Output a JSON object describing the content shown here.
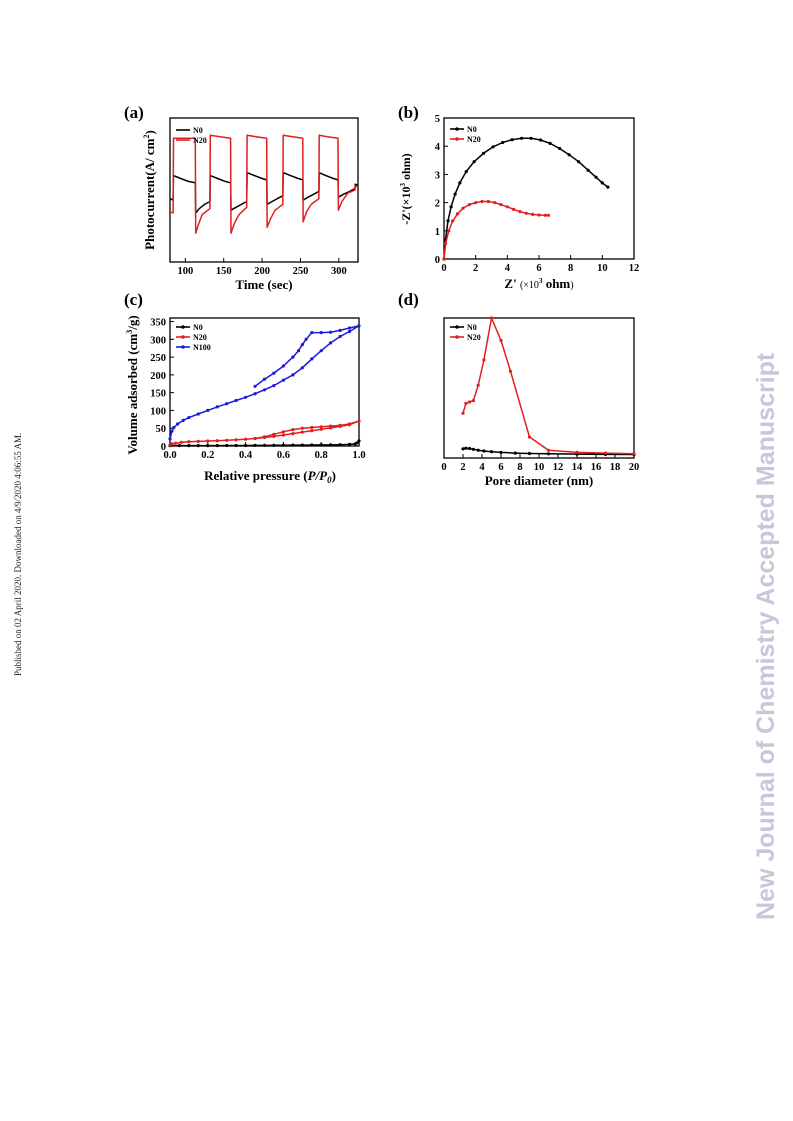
{
  "page": {
    "side_note": "Published on 02 April 2020. Downloaded on 4/9/2020 4:06:55 AM.",
    "watermark": "New Journal of Chemistry Accepted Manuscript"
  },
  "colors": {
    "N0": "#000000",
    "N20": "#e02020",
    "N100": "#1a1adb"
  },
  "chart_data": [
    {
      "panel": "(a)",
      "type": "line",
      "xlabel": "Time (sec)",
      "ylabel": "Photocurrent(A/ cm2)",
      "xlim": [
        80,
        325
      ],
      "ylim": [
        0,
        1
      ],
      "xticks": [
        100,
        150,
        200,
        250,
        300
      ],
      "yticks": [],
      "legend": "top-left",
      "series": [
        {
          "name": "N0",
          "color": "#000000",
          "marker": false,
          "x": [
            80,
            84,
            84.5,
            94,
            104,
            113,
            113.5,
            118,
            125,
            132,
            132.5,
            142,
            152,
            159,
            159.5,
            166,
            173,
            180,
            180.5,
            190,
            200,
            206,
            206.5,
            213,
            220,
            227,
            227.5,
            237,
            247,
            253,
            253.5,
            260,
            267,
            274,
            274.5,
            283,
            293,
            299,
            299.5,
            306,
            314,
            321,
            321.5,
            325
          ],
          "y": [
            0.44,
            0.43,
            0.6,
            0.58,
            0.56,
            0.55,
            0.34,
            0.37,
            0.4,
            0.42,
            0.6,
            0.58,
            0.56,
            0.55,
            0.36,
            0.38,
            0.4,
            0.42,
            0.62,
            0.6,
            0.58,
            0.57,
            0.4,
            0.42,
            0.44,
            0.46,
            0.62,
            0.6,
            0.58,
            0.57,
            0.43,
            0.45,
            0.47,
            0.49,
            0.62,
            0.6,
            0.58,
            0.57,
            0.45,
            0.47,
            0.49,
            0.51,
            0.54,
            0.53
          ]
        },
        {
          "name": "N20",
          "color": "#e02020",
          "marker": false,
          "x": [
            80,
            84,
            84.5,
            96,
            108,
            113,
            113.5,
            117,
            122,
            132,
            132.5,
            145,
            159,
            159.5,
            164,
            170,
            180,
            180.5,
            192,
            206,
            206.5,
            211,
            217,
            227,
            227.5,
            240,
            253,
            253.5,
            258,
            264,
            274,
            274.5,
            285,
            299,
            299.5,
            304,
            312,
            321,
            321.5,
            325
          ],
          "y": [
            0.35,
            0.34,
            0.86,
            0.86,
            0.86,
            0.86,
            0.2,
            0.26,
            0.33,
            0.37,
            0.88,
            0.87,
            0.86,
            0.2,
            0.27,
            0.33,
            0.38,
            0.88,
            0.87,
            0.86,
            0.24,
            0.3,
            0.36,
            0.4,
            0.88,
            0.87,
            0.86,
            0.28,
            0.35,
            0.4,
            0.44,
            0.88,
            0.87,
            0.86,
            0.36,
            0.42,
            0.48,
            0.5,
            0.53,
            0.52
          ]
        }
      ]
    },
    {
      "panel": "(b)",
      "type": "line",
      "xlabel": "Z' (×103 ohm)",
      "ylabel": "-Z'(×103 ohm)",
      "xlim": [
        0,
        12
      ],
      "ylim": [
        0,
        5
      ],
      "xticks": [
        0,
        2,
        4,
        6,
        8,
        10,
        12
      ],
      "yticks": [
        0,
        1,
        2,
        3,
        4,
        5
      ],
      "legend": "top-left",
      "series": [
        {
          "name": "N0",
          "color": "#000000",
          "marker": true,
          "x": [
            0,
            0.1,
            0.25,
            0.45,
            0.7,
            1.0,
            1.4,
            1.9,
            2.5,
            3.1,
            3.7,
            4.3,
            4.9,
            5.5,
            6.1,
            6.7,
            7.3,
            7.9,
            8.5,
            9.1,
            9.6,
            10.0,
            10.35
          ],
          "y": [
            0,
            0.7,
            1.35,
            1.85,
            2.3,
            2.7,
            3.1,
            3.45,
            3.75,
            3.98,
            4.13,
            4.23,
            4.28,
            4.28,
            4.22,
            4.1,
            3.92,
            3.7,
            3.45,
            3.15,
            2.9,
            2.7,
            2.55
          ]
        },
        {
          "name": "N20",
          "color": "#e02020",
          "marker": true,
          "x": [
            0,
            0.1,
            0.3,
            0.55,
            0.85,
            1.2,
            1.6,
            2.0,
            2.4,
            2.8,
            3.2,
            3.6,
            4.0,
            4.4,
            4.8,
            5.2,
            5.6,
            6.0,
            6.4,
            6.6
          ],
          "y": [
            0,
            0.55,
            1.0,
            1.35,
            1.6,
            1.8,
            1.93,
            2.0,
            2.04,
            2.04,
            2.0,
            1.93,
            1.85,
            1.76,
            1.68,
            1.62,
            1.58,
            1.56,
            1.55,
            1.55
          ]
        }
      ]
    },
    {
      "panel": "(c)",
      "type": "line",
      "xlabel": "Relative pressure (P/P0)",
      "ylabel": "Volume adsorbed (cm3/g)",
      "xlim": [
        0,
        1
      ],
      "ylim": [
        0,
        360
      ],
      "xticks": [
        0.0,
        0.2,
        0.4,
        0.6,
        0.8,
        1.0
      ],
      "yticks": [
        0,
        50,
        100,
        150,
        200,
        250,
        300,
        350
      ],
      "legend": "top-left",
      "series": [
        {
          "name": "N0",
          "color": "#000000",
          "marker": true,
          "x": [
            0.0,
            0.05,
            0.1,
            0.15,
            0.2,
            0.25,
            0.3,
            0.35,
            0.4,
            0.45,
            0.5,
            0.55,
            0.6,
            0.65,
            0.7,
            0.75,
            0.8,
            0.85,
            0.9,
            0.95,
            0.98,
            0.99,
            1.0
          ],
          "y": [
            1,
            1,
            1,
            1,
            1,
            1.2,
            1.3,
            1.4,
            1.5,
            1.6,
            1.8,
            2,
            2.2,
            2.4,
            2.6,
            2.8,
            3,
            3.2,
            3.6,
            4.5,
            6,
            9,
            14
          ]
        },
        {
          "name": "N20",
          "color": "#e02020",
          "marker": true,
          "x": [
            0.0,
            0.01,
            0.03,
            0.06,
            0.1,
            0.15,
            0.2,
            0.25,
            0.3,
            0.35,
            0.4,
            0.45,
            0.5,
            0.55,
            0.6,
            0.65,
            0.7,
            0.75,
            0.8,
            0.85,
            0.9,
            0.95,
            1.0,
            0.95,
            0.9,
            0.85,
            0.8,
            0.75,
            0.7,
            0.65,
            0.6,
            0.55,
            0.5,
            0.45
          ],
          "y": [
            3,
            6,
            8,
            10,
            12,
            13,
            14,
            15,
            16,
            17.5,
            19,
            21,
            24,
            27,
            31,
            35,
            39,
            43,
            47,
            51,
            55,
            60,
            70,
            62,
            58,
            56,
            54,
            52,
            50,
            46,
            40,
            33,
            26,
            21
          ]
        },
        {
          "name": "N100",
          "color": "#1a1adb",
          "marker": true,
          "x": [
            0.0,
            0.01,
            0.02,
            0.04,
            0.07,
            0.1,
            0.15,
            0.2,
            0.25,
            0.3,
            0.35,
            0.4,
            0.45,
            0.5,
            0.55,
            0.6,
            0.65,
            0.7,
            0.75,
            0.8,
            0.85,
            0.9,
            0.95,
            1.0,
            0.95,
            0.9,
            0.85,
            0.8,
            0.75,
            0.72,
            0.7,
            0.68,
            0.65,
            0.6,
            0.55,
            0.5,
            0.45
          ],
          "y": [
            20,
            42,
            52,
            62,
            72,
            80,
            90,
            100,
            110,
            119,
            128,
            137,
            147,
            158,
            170,
            185,
            200,
            220,
            245,
            268,
            290,
            308,
            322,
            338,
            332,
            325,
            320,
            319,
            319,
            300,
            285,
            268,
            250,
            225,
            205,
            188,
            168
          ]
        }
      ]
    },
    {
      "panel": "(d)",
      "type": "line",
      "xlabel": "Pore diameter (nm)",
      "ylabel": "",
      "xlim": [
        0,
        20
      ],
      "ylim": [
        0,
        1
      ],
      "xticks": [
        0,
        2,
        4,
        6,
        8,
        10,
        12,
        14,
        16,
        18,
        20
      ],
      "yticks": [],
      "legend": "top-left",
      "series": [
        {
          "name": "N0",
          "color": "#000000",
          "marker": true,
          "x": [
            2.0,
            2.3,
            2.7,
            3.1,
            3.6,
            4.2,
            5.0,
            6.0,
            7.5,
            9.0,
            11.0,
            14.0,
            17.0,
            20.0
          ],
          "y": [
            0.065,
            0.07,
            0.068,
            0.062,
            0.056,
            0.05,
            0.045,
            0.04,
            0.035,
            0.032,
            0.03,
            0.028,
            0.026,
            0.025
          ]
        },
        {
          "name": "N20",
          "color": "#e02020",
          "marker": true,
          "x": [
            2.0,
            2.3,
            2.7,
            3.1,
            3.6,
            4.2,
            5.0,
            6.0,
            7.0,
            9.0,
            11.0,
            14.0,
            17.0,
            20.0
          ],
          "y": [
            0.32,
            0.39,
            0.4,
            0.41,
            0.52,
            0.7,
            1.0,
            0.84,
            0.62,
            0.15,
            0.055,
            0.04,
            0.035,
            0.03
          ]
        }
      ]
    }
  ]
}
